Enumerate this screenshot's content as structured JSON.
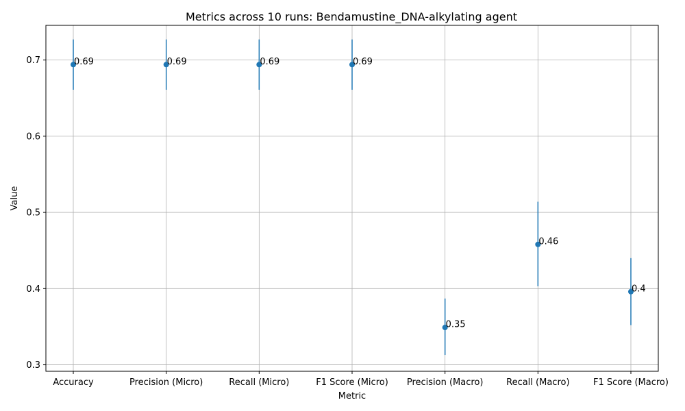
{
  "chart_data": {
    "type": "scatter",
    "title": "Metrics across 10 runs: Bendamustine_DNA-alkylating agent",
    "xlabel": "Metric",
    "ylabel": "Value",
    "categories": [
      "Accuracy",
      "Precision (Micro)",
      "Recall (Micro)",
      "F1 Score (Micro)",
      "Precision (Macro)",
      "Recall (Macro)",
      "F1 Score (Macro)"
    ],
    "values": [
      0.694,
      0.694,
      0.694,
      0.694,
      0.349,
      0.458,
      0.396
    ],
    "error_low": [
      0.661,
      0.661,
      0.661,
      0.661,
      0.313,
      0.403,
      0.352
    ],
    "error_high": [
      0.727,
      0.727,
      0.727,
      0.727,
      0.387,
      0.514,
      0.44
    ],
    "data_labels": [
      "0.69",
      "0.69",
      "0.69",
      "0.69",
      "0.35",
      "0.46",
      "0.4"
    ],
    "ylim": [
      0.2915,
      0.7455
    ],
    "yticks": [
      0.3,
      0.4,
      0.5,
      0.6,
      0.7
    ],
    "ytick_labels": [
      "0.3",
      "0.4",
      "0.5",
      "0.6",
      "0.7"
    ],
    "grid": true,
    "color": "#1f77b4"
  }
}
